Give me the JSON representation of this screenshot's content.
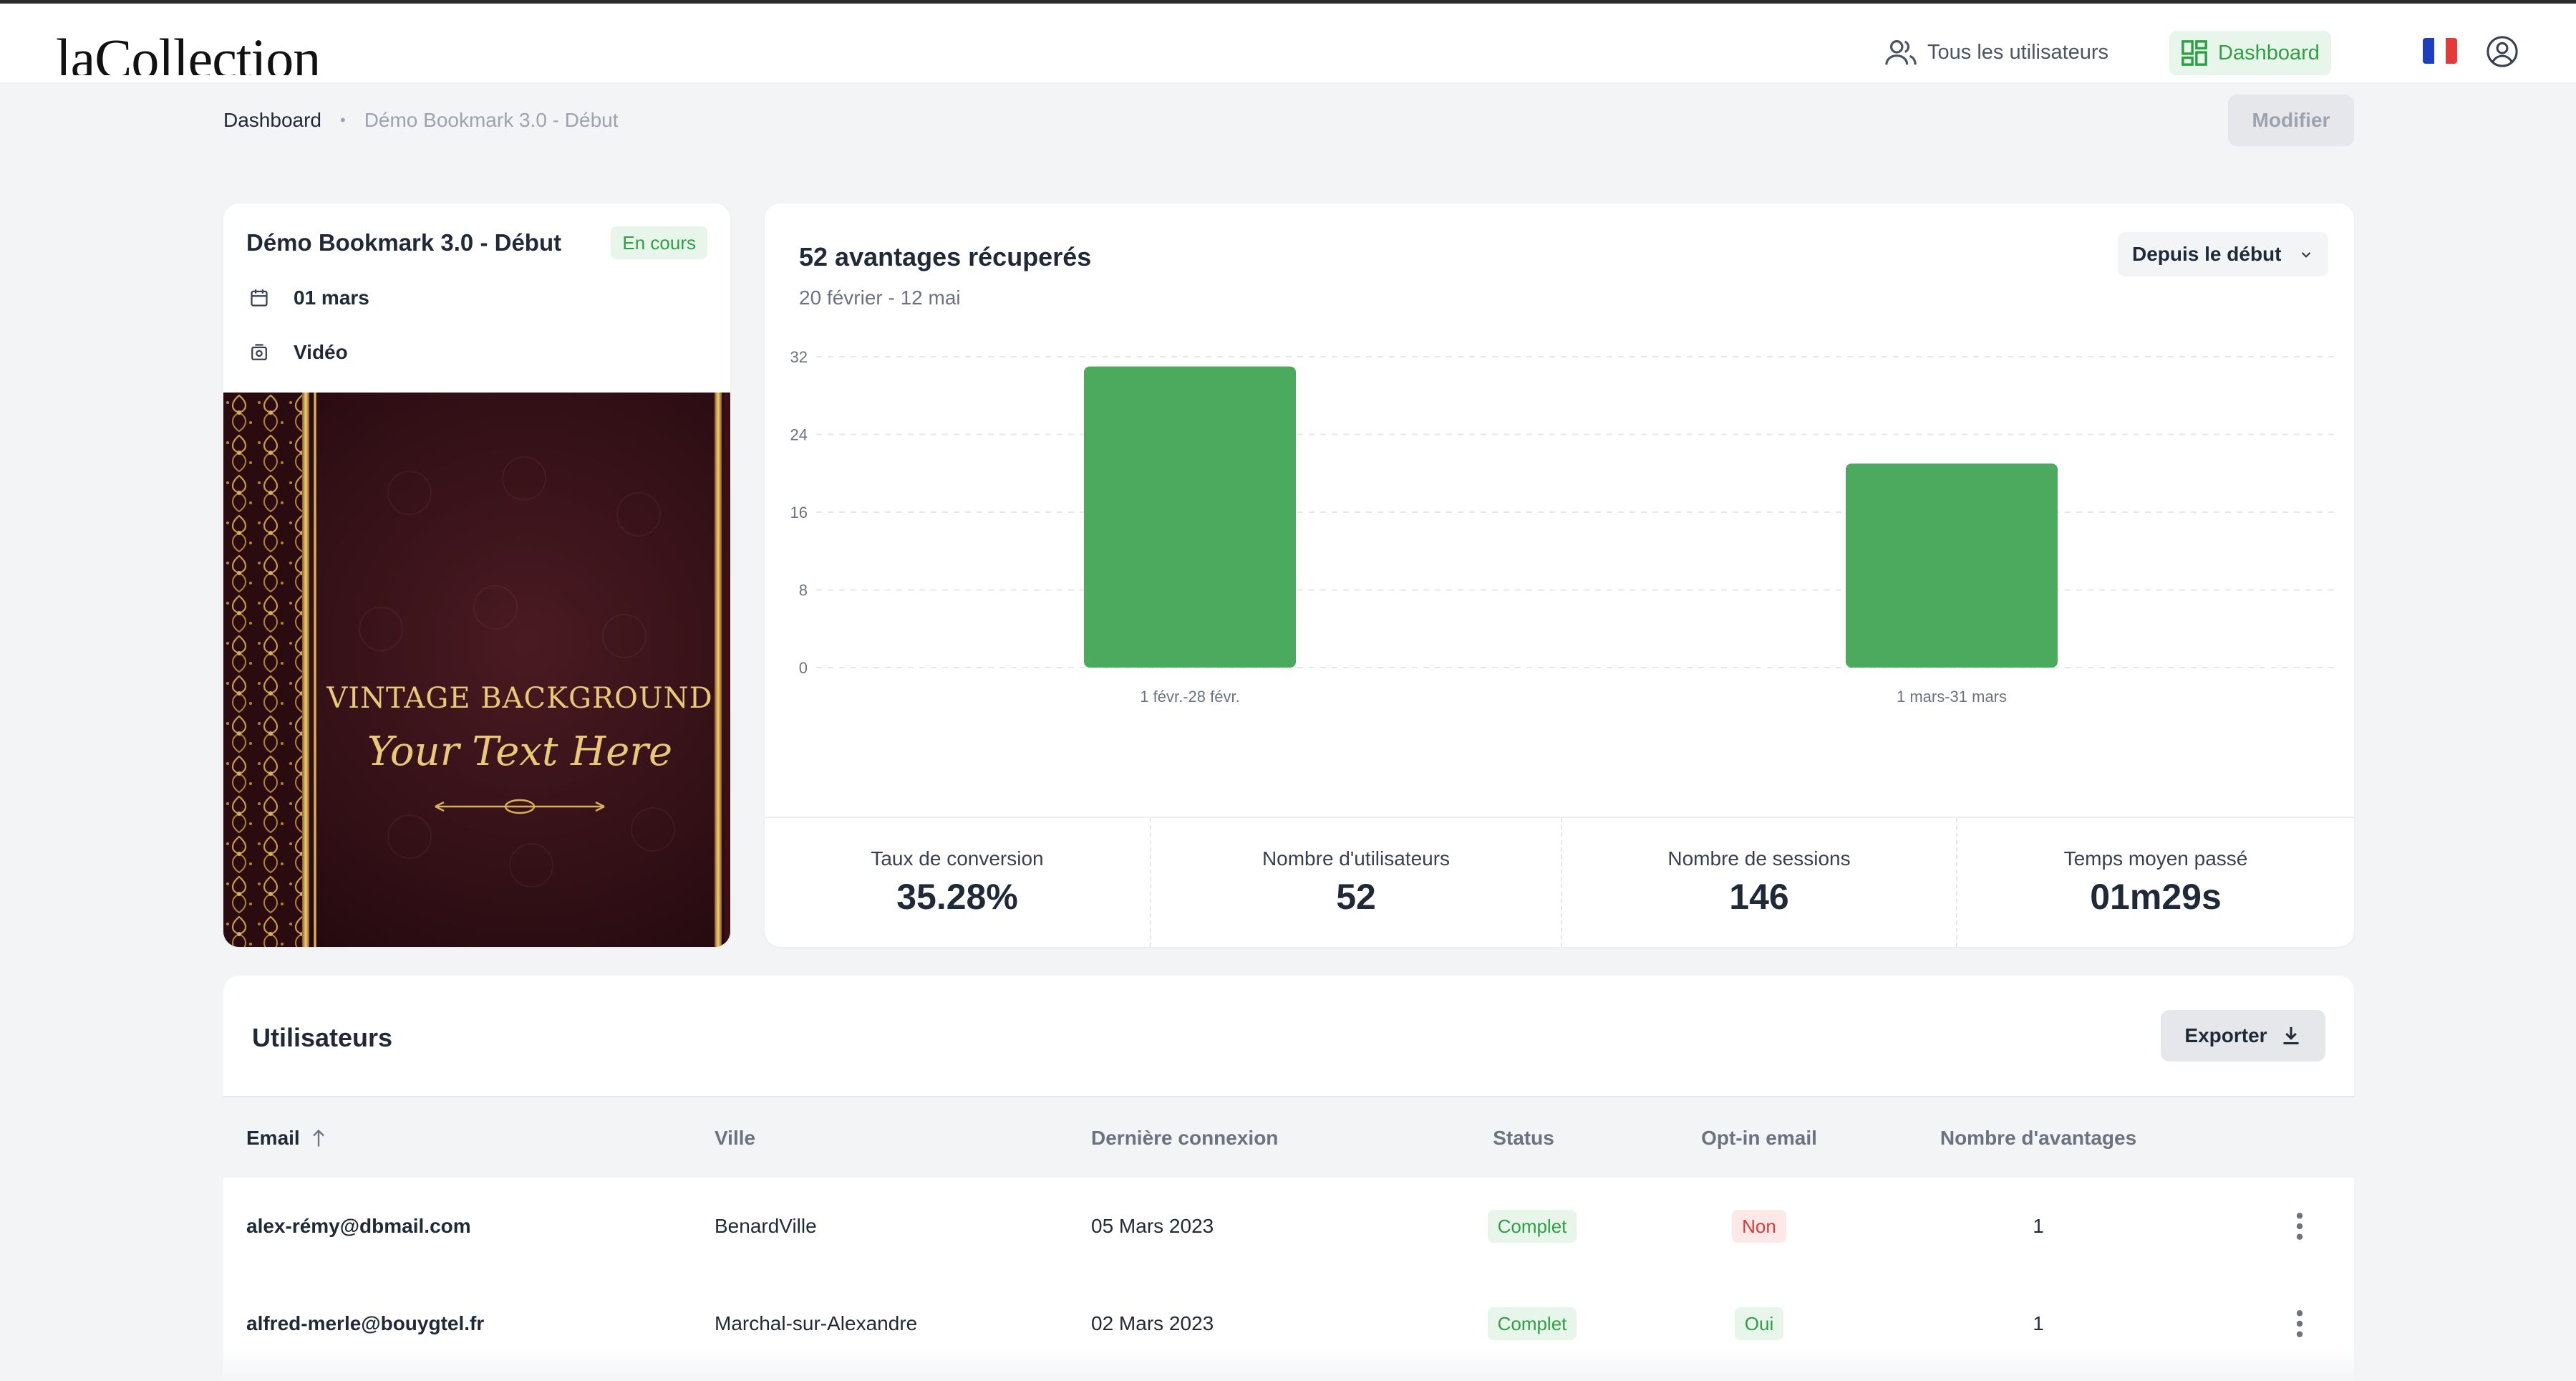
{
  "app": {
    "logo": "laCollection"
  },
  "nav": {
    "users_label": "Tous les utilisateurs",
    "dashboard_label": "Dashboard"
  },
  "breadcrumb": {
    "home": "Dashboard",
    "separator": "•",
    "current": "Démo Bookmark 3.0 - Début"
  },
  "actions": {
    "edit_label": "Modifier"
  },
  "event": {
    "title": "Démo Bookmark 3.0 - Début",
    "status": "En cours",
    "date": "01 mars",
    "type": "Vidéo",
    "image_line1": "VINTAGE BACKGROUND",
    "image_line2": "Your Text Here"
  },
  "chart_panel": {
    "title": "52 avantages récuperés",
    "subtitle": "20 février - 12 mai",
    "period_select": "Depuis le début"
  },
  "chart_data": {
    "type": "bar",
    "title": "52 avantages récuperés",
    "categories": [
      "1 févr.-28 févr.",
      "1 mars-31 mars"
    ],
    "values": [
      31,
      21
    ],
    "ylim": [
      0,
      32
    ],
    "yticks": [
      0,
      8,
      16,
      24,
      32
    ],
    "grid": true,
    "color": "#4caa5e"
  },
  "stats": [
    {
      "label": "Taux de conversion",
      "value": "35.28%"
    },
    {
      "label": "Nombre d'utilisateurs",
      "value": "52"
    },
    {
      "label": "Nombre de sessions",
      "value": "146"
    },
    {
      "label": "Temps moyen passé",
      "value": "01m29s"
    }
  ],
  "users": {
    "title": "Utilisateurs",
    "export_label": "Exporter",
    "columns": [
      "Email",
      "Ville",
      "Dernière connexion",
      "Status",
      "Opt-in email",
      "Nombre d'avantages"
    ],
    "rows": [
      {
        "email": "alex-rémy@dbmail.com",
        "city": "BenardVille",
        "last_login": "05 Mars 2023",
        "status": "Complet",
        "optin": "Non",
        "count": "1"
      },
      {
        "email": "alfred-merle@bouygtel.fr",
        "city": "Marchal-sur-Alexandre",
        "last_login": "02 Mars 2023",
        "status": "Complet",
        "optin": "Oui",
        "count": "1"
      }
    ]
  },
  "colors": {
    "accent": "#2f9e44",
    "bar": "#4caa5e",
    "danger": "#d63b3b",
    "flag_blue": "#1d3fbf",
    "flag_red": "#e23b3b"
  }
}
